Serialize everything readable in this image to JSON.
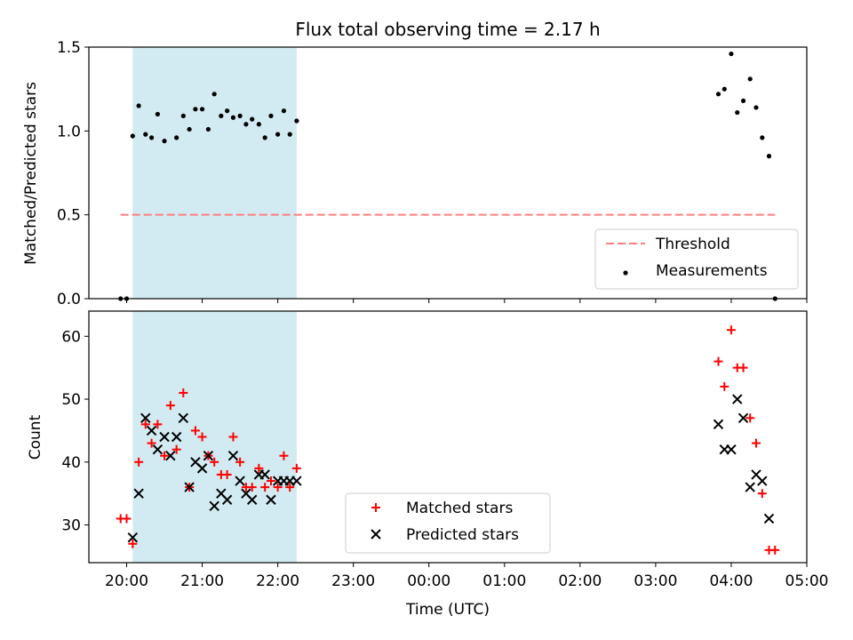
{
  "chart_data": [
    {
      "type": "scatter",
      "panel": "top",
      "title": "Flux total observing time = 2.17 h",
      "ylabel": "Matched/Predicted stars",
      "xlabel": "",
      "xlim": [
        -0.5,
        9.0
      ],
      "ylim": [
        0.0,
        1.5
      ],
      "yticks": [
        0.0,
        0.5,
        1.0,
        1.5
      ],
      "ytick_labels": [
        "0.0",
        "0.5",
        "1.0",
        "1.5"
      ],
      "grid": false,
      "shaded_span_hours": [
        0.08,
        2.25
      ],
      "shaded_color": "#add8e6",
      "legend_location": "lower right",
      "series": [
        {
          "name": "Threshold",
          "style": "dashed-line",
          "color": "#ff7f7f",
          "x": [
            -0.08,
            8.58
          ],
          "y": [
            0.5,
            0.5
          ]
        },
        {
          "name": "Measurements",
          "style": "dot",
          "color": "#000000",
          "x": [
            -0.08,
            0.0,
            0.08,
            0.16,
            0.25,
            0.33,
            0.41,
            0.5,
            0.66,
            0.75,
            0.83,
            0.91,
            1.0,
            1.08,
            1.16,
            1.25,
            1.33,
            1.41,
            1.5,
            1.58,
            1.66,
            1.75,
            1.83,
            1.91,
            2.0,
            2.08,
            2.16,
            2.25,
            7.83,
            7.91,
            8.0,
            8.08,
            8.16,
            8.25,
            8.33,
            8.41,
            8.5,
            8.58
          ],
          "y": [
            0.0,
            0.0,
            0.97,
            1.15,
            0.98,
            0.96,
            1.1,
            0.94,
            0.96,
            1.09,
            1.01,
            1.13,
            1.13,
            1.01,
            1.22,
            1.09,
            1.12,
            1.08,
            1.09,
            1.04,
            1.07,
            1.04,
            0.96,
            1.09,
            0.98,
            1.12,
            0.98,
            1.06,
            1.22,
            1.25,
            1.46,
            1.11,
            1.18,
            1.31,
            1.14,
            0.96,
            0.85,
            0.0
          ]
        }
      ]
    },
    {
      "type": "scatter",
      "panel": "bottom",
      "title": "",
      "ylabel": "Count",
      "xlabel": "Time (UTC)",
      "xlim": [
        -0.5,
        9.0
      ],
      "ylim": [
        24,
        64
      ],
      "yticks": [
        30,
        40,
        50,
        60
      ],
      "ytick_labels": [
        "30",
        "40",
        "50",
        "60"
      ],
      "xticks_hours": [
        0,
        1,
        2,
        3,
        4,
        5,
        6,
        7,
        8,
        9
      ],
      "xtick_labels": [
        "20:00",
        "21:00",
        "22:00",
        "23:00",
        "00:00",
        "01:00",
        "02:00",
        "03:00",
        "04:00",
        "05:00"
      ],
      "grid": false,
      "shaded_span_hours": [
        0.08,
        2.25
      ],
      "shaded_color": "#add8e6",
      "legend_location": "lower center",
      "series": [
        {
          "name": "Matched stars",
          "style": "plus",
          "color": "#ff0000",
          "x": [
            -0.08,
            0.0,
            0.08,
            0.16,
            0.25,
            0.33,
            0.41,
            0.5,
            0.58,
            0.66,
            0.75,
            0.83,
            0.91,
            1.0,
            1.08,
            1.16,
            1.25,
            1.33,
            1.41,
            1.5,
            1.58,
            1.66,
            1.75,
            1.83,
            1.91,
            2.0,
            2.08,
            2.16,
            2.25,
            7.83,
            7.91,
            8.0,
            8.08,
            8.16,
            8.25,
            8.33,
            8.41,
            8.5,
            8.58
          ],
          "y": [
            31,
            31,
            27,
            40,
            46,
            43,
            46,
            41,
            49,
            42,
            51,
            36,
            45,
            44,
            41,
            40,
            38,
            38,
            44,
            40,
            36,
            36,
            39,
            36,
            37,
            36,
            41,
            36,
            39,
            56,
            52,
            61,
            55,
            55,
            47,
            43,
            35,
            26,
            26
          ]
        },
        {
          "name": "Predicted stars",
          "style": "x",
          "color": "#000000",
          "x": [
            0.08,
            0.16,
            0.25,
            0.33,
            0.41,
            0.5,
            0.58,
            0.66,
            0.75,
            0.83,
            0.91,
            1.0,
            1.08,
            1.16,
            1.25,
            1.33,
            1.41,
            1.5,
            1.58,
            1.66,
            1.75,
            1.83,
            1.91,
            2.0,
            2.08,
            2.16,
            2.25,
            7.83,
            7.91,
            8.0,
            8.08,
            8.16,
            8.25,
            8.33,
            8.41,
            8.5
          ],
          "y": [
            28,
            35,
            47,
            45,
            42,
            44,
            41,
            44,
            47,
            36,
            40,
            39,
            41,
            33,
            35,
            34,
            41,
            37,
            35,
            34,
            38,
            38,
            34,
            37,
            37,
            37,
            37,
            46,
            42,
            42,
            50,
            47,
            36,
            38,
            37,
            31
          ]
        }
      ]
    }
  ]
}
